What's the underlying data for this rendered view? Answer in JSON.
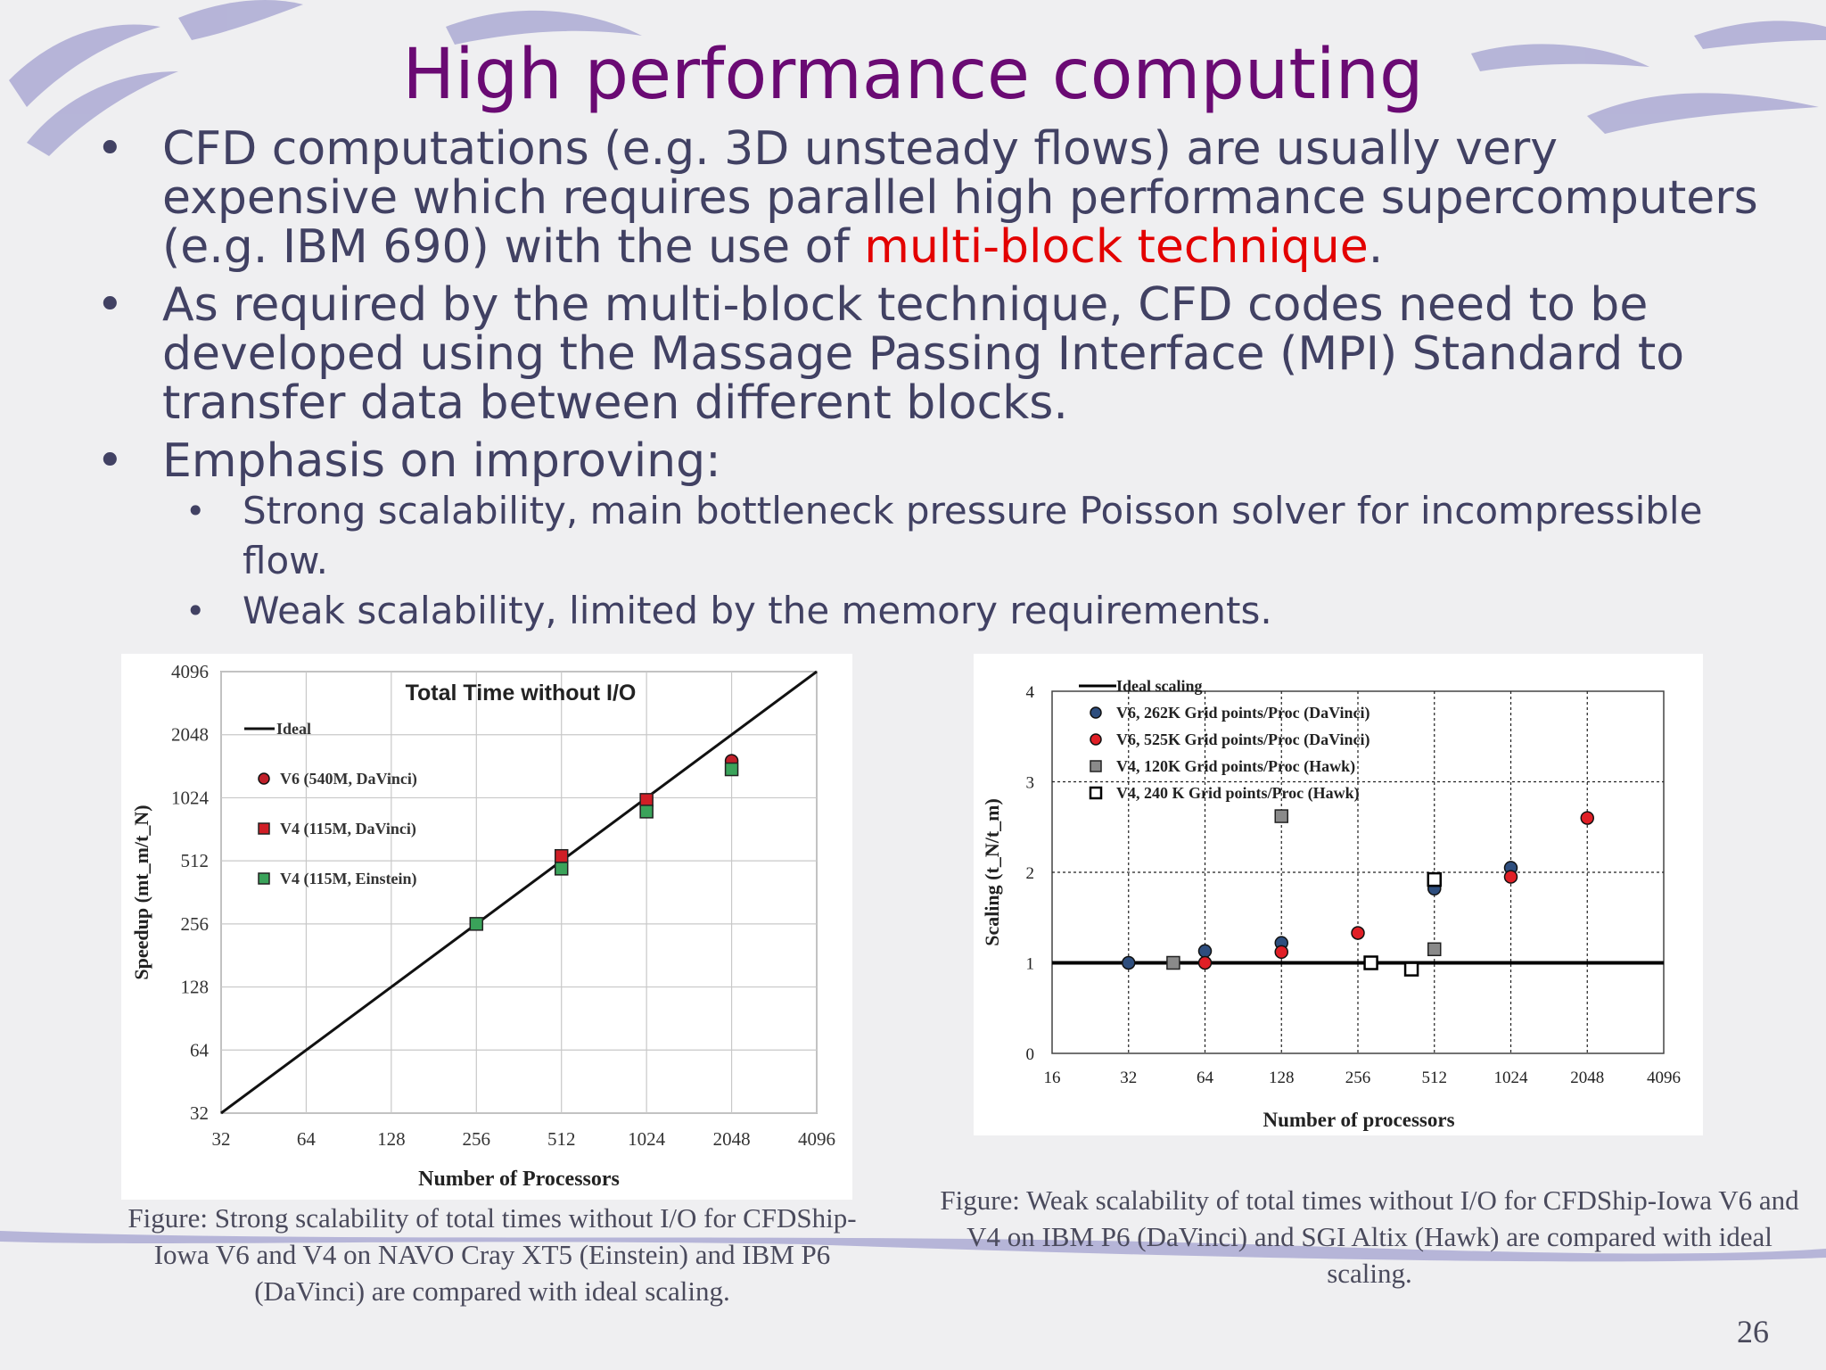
{
  "slide": {
    "title": "High performance computing",
    "bullets": [
      {
        "pre": "CFD computations (e.g. 3D unsteady flows) are usually very expensive which requires parallel high performance supercomputers (e.g. IBM 690) with the use of ",
        "highlight": "multi-block technique",
        "post": "."
      },
      {
        "text": "As required by the multi-block technique, CFD codes need to be developed using the Massage Passing Interface (MPI) Standard  to transfer data between different blocks."
      },
      {
        "text": "Emphasis on improving:"
      }
    ],
    "sub_bullets": [
      "Strong scalability, main bottleneck pressure Poisson solver for incompressible flow.",
      "Weak scalability, limited by the memory requirements."
    ],
    "bullet_glyph": "•",
    "caption_left": "Figure: Strong scalability of total times without I/O for CFDShip-Iowa V6 and V4 on NAVO Cray XT5 (Einstein) and IBM P6 (DaVinci) are compared with ideal scaling.",
    "caption_right": "Figure: Weak scalability of total times without I/O for CFDShip-Iowa V6 and V4 on IBM P6 (DaVinci) and SGI Altix (Hawk) are compared with ideal scaling.",
    "page_number": "26",
    "colors": {
      "title": "#6a0a73",
      "body": "#414163",
      "highlight": "#e30000"
    }
  },
  "chart_data": [
    {
      "type": "line",
      "title": "Total Time without I/O",
      "xlabel": "Number of Processors",
      "ylabel": "Speedup (mt_m/t_N)",
      "xscale": "log2",
      "yscale": "log2",
      "xticks": [
        "32",
        "64",
        "128",
        "256",
        "512",
        "1024",
        "2048",
        "4096"
      ],
      "yticks": [
        "32",
        "64",
        "128",
        "256",
        "512",
        "1024",
        "2048",
        "4096"
      ],
      "xlim": [
        32,
        4096
      ],
      "ylim": [
        32,
        4096
      ],
      "grid": true,
      "legend_position": "top-left",
      "series": [
        {
          "name": "Ideal",
          "kind": "line",
          "color": "#111111",
          "points": [
            [
              32,
              32
            ],
            [
              4096,
              4096
            ]
          ]
        },
        {
          "name": "V6 (540M, DaVinci)",
          "kind": "circle",
          "color": "#c0202a",
          "points": [
            [
              2048,
              1536
            ]
          ]
        },
        {
          "name": "V4 (115M, DaVinci)",
          "kind": "square",
          "color": "#d01e26",
          "points": [
            [
              512,
              540
            ],
            [
              1024,
              1000
            ]
          ]
        },
        {
          "name": "V4 (115M, Einstein)",
          "kind": "square",
          "color": "#3aa35a",
          "points": [
            [
              256,
              256
            ],
            [
              512,
              470
            ],
            [
              1024,
              880
            ],
            [
              2048,
              1400
            ]
          ]
        }
      ]
    },
    {
      "type": "scatter",
      "xlabel": "Number of processors",
      "ylabel": "Scaling (t_N/t_m)",
      "xscale": "log2",
      "xticks": [
        "16",
        "32",
        "64",
        "128",
        "256",
        "512",
        "1024",
        "2048",
        "4096"
      ],
      "yticks": [
        "0",
        "1",
        "2",
        "3",
        "4"
      ],
      "xlim": [
        16,
        4096
      ],
      "ylim": [
        0,
        4
      ],
      "grid": true,
      "legend_position": "top-left",
      "series": [
        {
          "name": "Ideal scaling",
          "kind": "line",
          "color": "#000000",
          "points": [
            [
              16,
              1
            ],
            [
              4096,
              1
            ]
          ]
        },
        {
          "name": "V6, 262K Grid points/Proc (DaVinci)",
          "kind": "circle",
          "color": "#2e4e7e",
          "points": [
            [
              32,
              1.0
            ],
            [
              64,
              1.13
            ],
            [
              128,
              1.22
            ],
            [
              512,
              1.82
            ],
            [
              1024,
              2.05
            ]
          ]
        },
        {
          "name": "V6, 525K Grid points/Proc (DaVinci)",
          "kind": "circle",
          "color": "#e01f26",
          "points": [
            [
              64,
              1.0
            ],
            [
              128,
              1.12
            ],
            [
              256,
              1.33
            ],
            [
              1024,
              1.95
            ],
            [
              2048,
              2.6
            ]
          ]
        },
        {
          "name": "V4, 120K Grid points/Proc (Hawk)",
          "kind": "square",
          "color": "#8a8a8a",
          "points": [
            [
              48,
              1.0
            ],
            [
              128,
              2.62
            ],
            [
              512,
              1.15
            ]
          ]
        },
        {
          "name": "V4, 240 K Grid points/Proc (Hawk)",
          "kind": "square-open",
          "color": "#000000",
          "points": [
            [
              288,
              1.0
            ],
            [
              416,
              0.93
            ],
            [
              512,
              1.92
            ]
          ]
        }
      ]
    }
  ]
}
